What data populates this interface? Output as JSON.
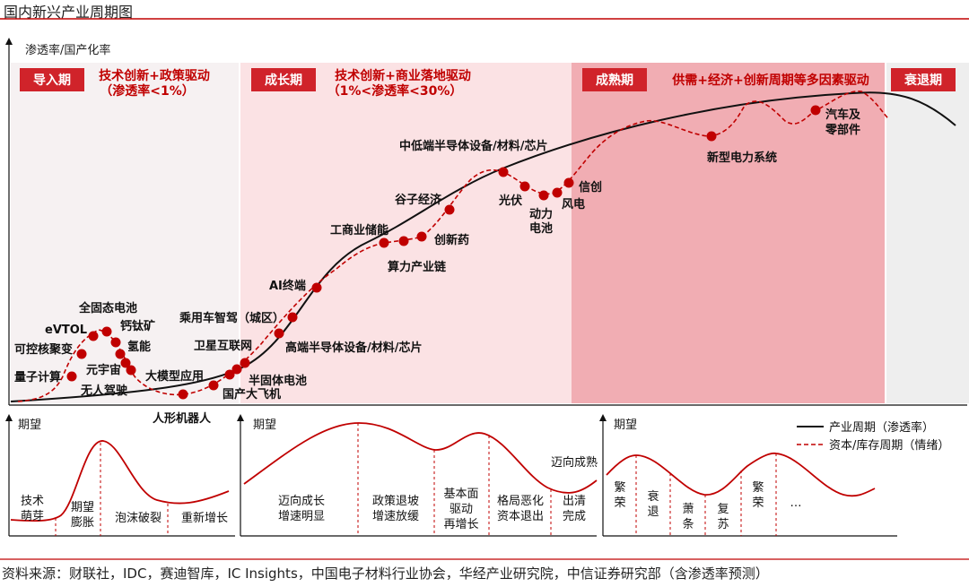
{
  "title": "国内新兴产业周期图",
  "source": "资料来源：财联社，IDC，赛迪智库，IC Insights，中国电子材料行业协会，华经产业研究院，中信证券研究部（含渗透率预测）",
  "main": {
    "y_axis_label": "渗透率/国产化率",
    "stages": [
      {
        "name": "导入期",
        "desc_lines": [
          "技术创新+政策驱动",
          "（渗透率<1%）"
        ]
      },
      {
        "name": "成长期",
        "desc_lines": [
          "技术创新+商业落地驱动",
          "（1%<渗透率<30%）"
        ]
      },
      {
        "name": "成熟期",
        "desc_lines": [
          "供需+经济+创新周期等多因素驱动"
        ]
      },
      {
        "name": "衰退期",
        "desc_lines": []
      }
    ],
    "industries": [
      [
        "量子计算"
      ],
      [
        "可控核聚变"
      ],
      [
        "eVTOL"
      ],
      [
        "全固态电池"
      ],
      [
        "钙钛矿"
      ],
      [
        "氢能"
      ],
      [
        "元宇宙"
      ],
      [
        "无人驾驶"
      ],
      [
        "人形机器人"
      ],
      [
        "大模型应用"
      ],
      [
        "国产大飞机"
      ],
      [
        "半固体电池"
      ],
      [
        "卫星互联网"
      ],
      [
        "乘用车智驾（城区）"
      ],
      [
        "高端半导体设备/材料/芯片"
      ],
      [
        "AI终端"
      ],
      [
        "工商业储能"
      ],
      [
        "算力产业链"
      ],
      [
        "创新药"
      ],
      [
        "谷子经济"
      ],
      [
        "中低端半导体设备/材料/芯片"
      ],
      [
        "光伏"
      ],
      [
        "动力",
        "电池"
      ],
      [
        "风电"
      ],
      [
        "信创"
      ],
      [
        "新型电力系统"
      ],
      [
        "汽车及",
        "零部件"
      ]
    ]
  },
  "legend": {
    "industry_cycle": "产业周期（渗透率）",
    "capital_cycle": "资本/库存周期（情绪）"
  },
  "sub_panels": [
    {
      "y_label": "期望",
      "phases": [
        [
          "技术",
          "萌芽"
        ],
        [
          "期望",
          "膨胀"
        ],
        [
          "泡沫破裂"
        ],
        [
          "重新增长"
        ]
      ]
    },
    {
      "y_label": "期望",
      "extra_label": "迈向成熟",
      "phases": [
        [
          "迈向成长",
          "增速明显"
        ],
        [
          "政策退坡",
          "增速放缓"
        ],
        [
          "基本面",
          "驱动",
          "再增长"
        ],
        [
          "格局恶化",
          "资本退出"
        ],
        [
          "出清",
          "完成"
        ]
      ]
    },
    {
      "y_label": "期望",
      "phases": [
        [
          "繁",
          "荣"
        ],
        [
          "衰",
          "退"
        ],
        [
          "萧",
          "条"
        ],
        [
          "复",
          "苏"
        ],
        [
          "繁",
          "荣"
        ],
        [
          "…"
        ]
      ]
    }
  ],
  "colors": {
    "accent_red": "#c00000",
    "label_box_red": "#d0232a",
    "stage_bg_intro": "#f6f1f2",
    "stage_bg_growth": "#fbe2e4",
    "stage_bg_mature": "#f1adb3",
    "stage_bg_decline": "#eeeeee",
    "curve_black": "#111111"
  }
}
